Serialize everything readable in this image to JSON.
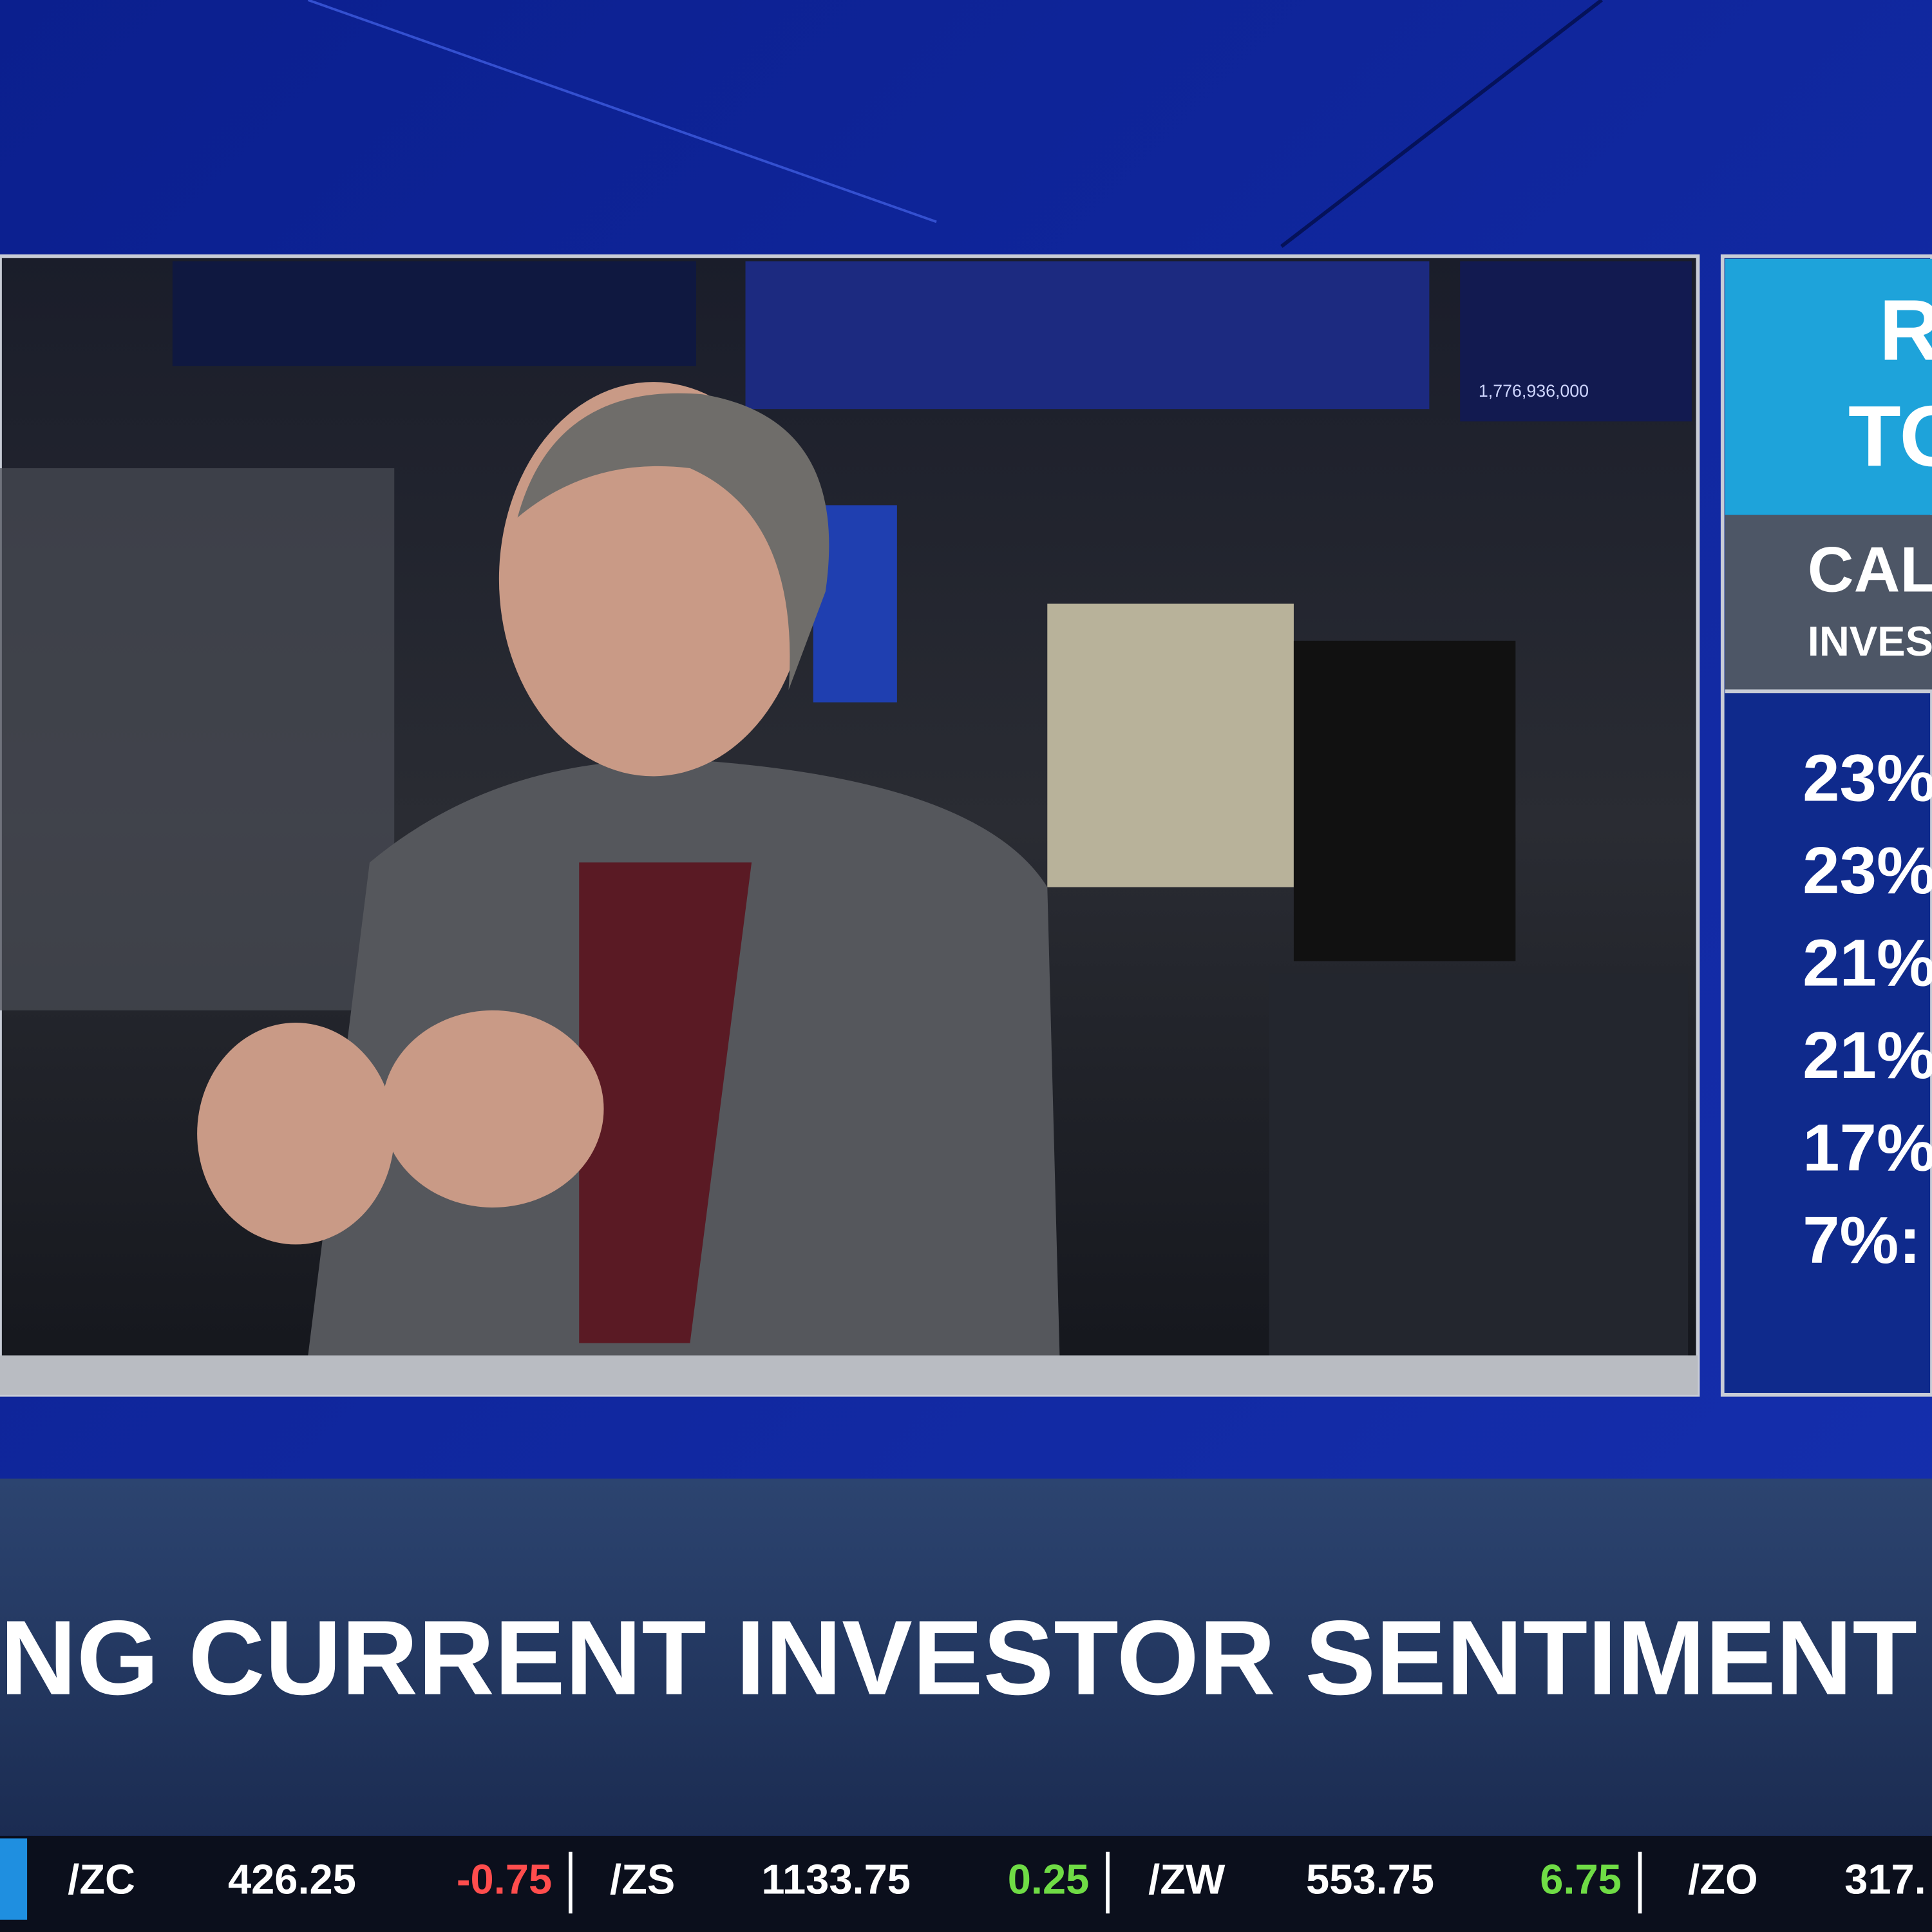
{
  "side_panel": {
    "header": [
      "R",
      "TO"
    ],
    "subheader": {
      "title": "CAL",
      "subtitle": "INVES"
    },
    "items": [
      "23%",
      "23%",
      "21%",
      "21%",
      "17%",
      "7%:"
    ]
  },
  "background_monitor": "1,776,936,000",
  "headline": "NG CURRENT INVESTOR SENTIMENT",
  "ticker": [
    {
      "symbol": "/ZC",
      "price": "426.25",
      "change": "-0.75"
    },
    {
      "symbol": "/ZS",
      "price": "1133.75",
      "change": "0.25"
    },
    {
      "symbol": "/ZW",
      "price": "553.75",
      "change": "6.75"
    },
    {
      "symbol": "/ZO",
      "price": "317."
    }
  ]
}
